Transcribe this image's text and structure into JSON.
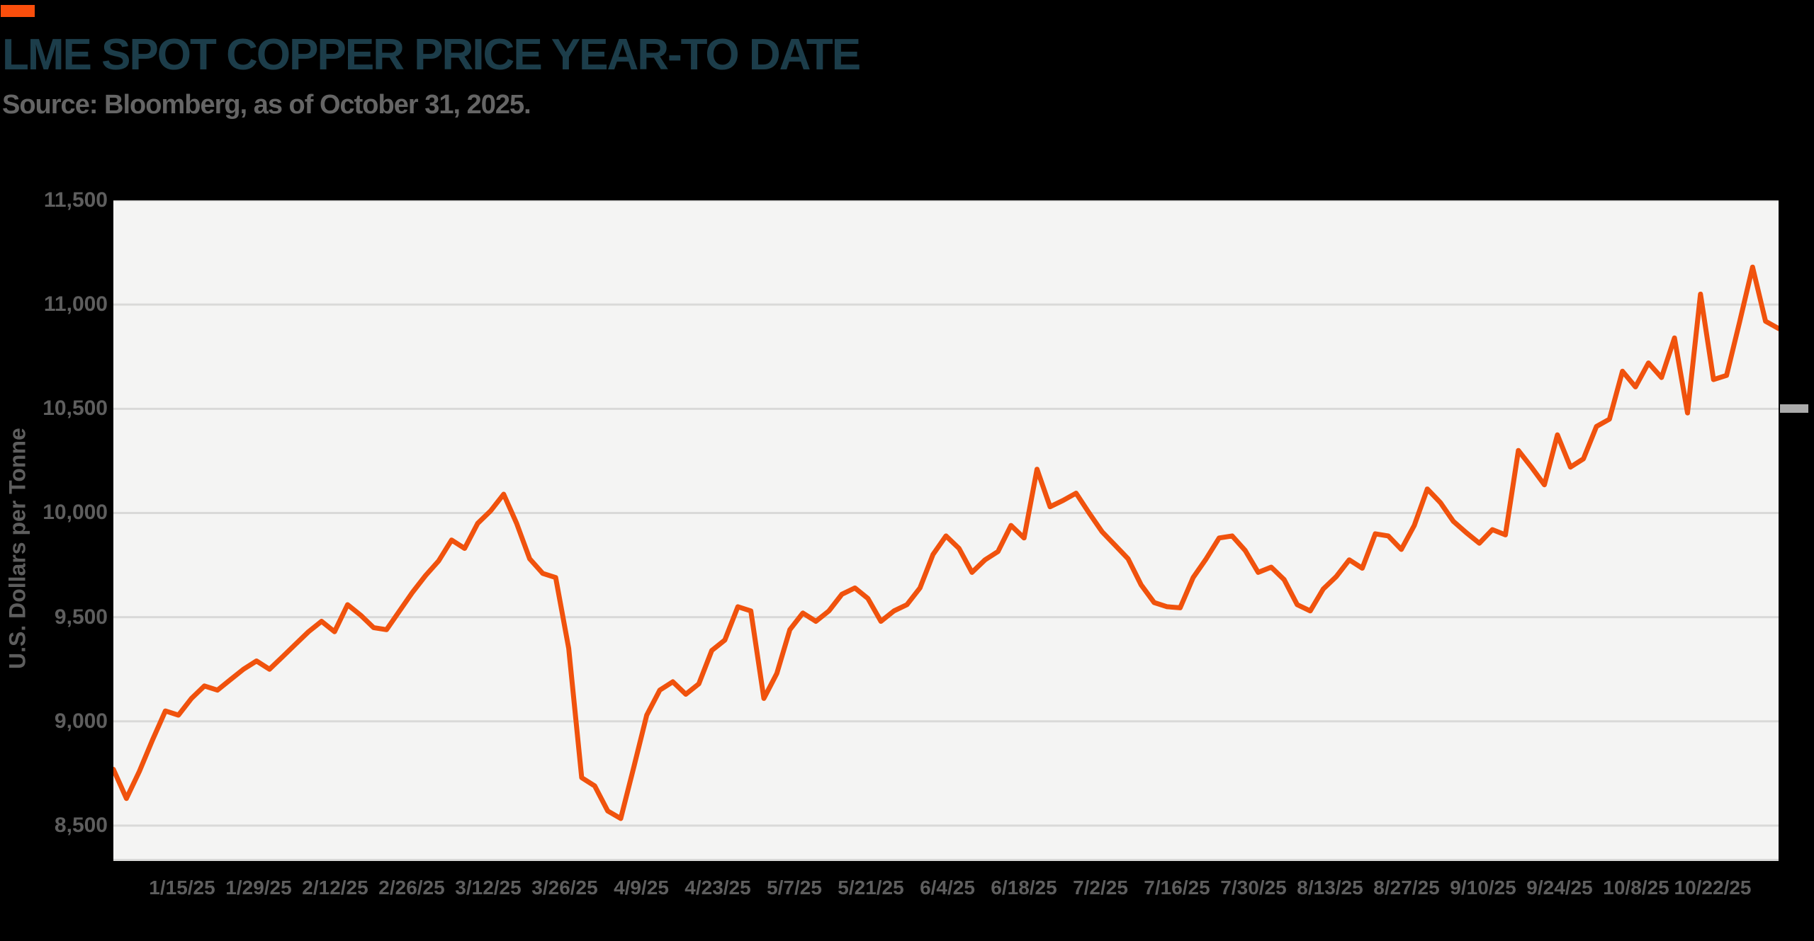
{
  "page": {
    "background": "#000000"
  },
  "logo": {
    "label": "brand-logo-mark",
    "color": "#FA4E0C"
  },
  "header": {
    "title": "LME SPOT COPPER PRICE YEAR-TO DATE",
    "title_color": "#1C3D4A",
    "subtitle": "Source: Bloomberg, as of October 31, 2025.",
    "subtitle_color": "#656565"
  },
  "chart_data": {
    "type": "line",
    "title": "LME Spot Copper Price Year-to Date",
    "series_name": "LME spot copper price",
    "xlabel": "",
    "ylabel": "U.S. Dollars per Tonne",
    "line_color": "#F0520D",
    "plot_bg": "#F4F4F3",
    "grid_color": "#D9D9D8",
    "grid": "horizontal",
    "legend": "none",
    "ylim": [
      8330,
      11500
    ],
    "ytick_values": [
      11500,
      11000,
      10500,
      10000,
      9500,
      9000,
      8500
    ],
    "yticks": [
      "11,500",
      "11,000",
      "10,500",
      "10,000",
      "9,500",
      "9,000",
      "8,500"
    ],
    "xticks": [
      "1/15/25",
      "1/29/25",
      "2/12/25",
      "2/26/25",
      "3/12/25",
      "3/26/25",
      "4/9/25",
      "4/23/25",
      "5/7/25",
      "5/21/25",
      "6/4/25",
      "6/18/25",
      "7/2/25",
      "7/16/25",
      "7/30/25",
      "8/13/25",
      "8/27/25",
      "9/10/25",
      "9/24/25",
      "10/8/25",
      "10/22/25"
    ],
    "x": [
      "1/2",
      "1/3",
      "1/7",
      "1/9",
      "1/13",
      "1/15",
      "1/17",
      "1/21",
      "1/23",
      "1/27",
      "1/29",
      "1/31",
      "2/4",
      "2/6",
      "2/10",
      "2/12",
      "2/14",
      "2/18",
      "2/20",
      "2/24",
      "2/26",
      "2/28",
      "3/4",
      "3/6",
      "3/10",
      "3/12",
      "3/14",
      "3/18",
      "3/20",
      "3/24",
      "3/26",
      "3/28",
      "3/31",
      "4/1",
      "4/2",
      "4/3",
      "4/4",
      "4/7",
      "4/8",
      "4/9",
      "4/10",
      "4/11",
      "4/15",
      "4/17",
      "4/22",
      "4/24",
      "4/28",
      "4/30",
      "5/1",
      "5/2",
      "5/6",
      "5/7",
      "5/9",
      "5/13",
      "5/15",
      "5/19",
      "5/21",
      "5/23",
      "5/28",
      "5/30",
      "6/3",
      "6/5",
      "6/9",
      "6/11",
      "6/13",
      "6/16",
      "6/18",
      "6/20",
      "6/24",
      "6/26",
      "6/30",
      "7/1",
      "7/3",
      "7/7",
      "7/9",
      "7/11",
      "7/15",
      "7/17",
      "7/21",
      "7/23",
      "7/25",
      "7/29",
      "7/31",
      "8/4",
      "8/6",
      "8/8",
      "8/12",
      "8/14",
      "8/18",
      "8/20",
      "8/22",
      "8/26",
      "8/28",
      "9/2",
      "9/4",
      "9/8",
      "9/10",
      "9/12",
      "9/16",
      "9/18",
      "9/22",
      "9/24",
      "9/25",
      "9/26",
      "9/29",
      "9/30",
      "10/1",
      "10/2",
      "10/3",
      "10/6",
      "10/7",
      "10/8",
      "10/9",
      "10/10",
      "10/13",
      "10/14",
      "10/15",
      "10/16",
      "10/17",
      "10/20",
      "10/21",
      "10/22",
      "10/23",
      "10/24",
      "10/27",
      "10/28",
      "10/29",
      "10/30",
      "10/31"
    ],
    "values": [
      8770,
      8630,
      8760,
      8910,
      9050,
      9030,
      9110,
      9170,
      9150,
      9200,
      9250,
      9290,
      9250,
      9310,
      9370,
      9430,
      9480,
      9430,
      9560,
      9510,
      9450,
      9440,
      9530,
      9620,
      9700,
      9770,
      9870,
      9830,
      9950,
      10010,
      10090,
      9950,
      9780,
      9710,
      9690,
      9350,
      8730,
      8690,
      8570,
      8534,
      8780,
      9030,
      9150,
      9190,
      9130,
      9180,
      9340,
      9390,
      9550,
      9530,
      9110,
      9230,
      9440,
      9520,
      9480,
      9530,
      9610,
      9640,
      9590,
      9480,
      9530,
      9560,
      9640,
      9800,
      9890,
      9830,
      9715,
      9775,
      9815,
      9940,
      9880,
      10210,
      10030,
      10060,
      10095,
      10000,
      9910,
      9845,
      9780,
      9655,
      9570,
      9550,
      9545,
      9690,
      9780,
      9880,
      9890,
      9820,
      9715,
      9740,
      9680,
      9560,
      9530,
      9635,
      9695,
      9775,
      9735,
      9900,
      9890,
      9825,
      9940,
      10115,
      10050,
      9960,
      9905,
      9855,
      9920,
      9895,
      10300,
      10220,
      10135,
      10375,
      10220,
      10260,
      10415,
      10450,
      10680,
      10605,
      10720,
      10650,
      10840,
      10480,
      11050,
      10640,
      10660,
      10915,
      11180,
      10920,
      10885
    ]
  }
}
